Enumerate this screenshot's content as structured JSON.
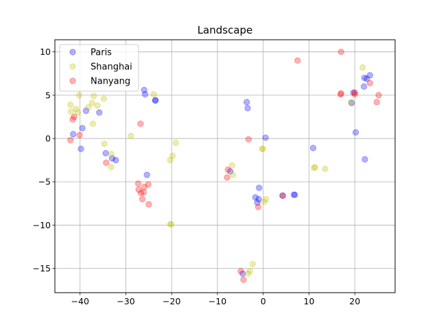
{
  "chart_data": {
    "type": "scatter",
    "title": "Landscape",
    "xlabel": "",
    "ylabel": "",
    "xlim": [
      -45.5,
      28.8
    ],
    "ylim": [
      -17.8,
      11.4
    ],
    "xticks": [
      -40,
      -30,
      -20,
      -10,
      0,
      10,
      20
    ],
    "yticks": [
      -15,
      -10,
      -5,
      0,
      5,
      10
    ],
    "xtick_labels": [
      "−40",
      "−30",
      "−20",
      "−10",
      "0",
      "10",
      "20"
    ],
    "ytick_labels": [
      "−15",
      "−10",
      "−5",
      "0",
      "5",
      "10"
    ],
    "grid": true,
    "legend_position": "top-left",
    "series": [
      {
        "name": "Paris",
        "color": "#0000ff",
        "points": [
          [
            -41.5,
            0.5
          ],
          [
            -39.8,
            -1.2
          ],
          [
            -39.5,
            1.2
          ],
          [
            -38.7,
            3.2
          ],
          [
            -35.8,
            3.0
          ],
          [
            -34.4,
            -1.7
          ],
          [
            -33.0,
            -2.3
          ],
          [
            -32.2,
            -2.5
          ],
          [
            -26.0,
            5.6
          ],
          [
            -25.8,
            5.1
          ],
          [
            -25.4,
            -4.2
          ],
          [
            -23.6,
            4.4
          ],
          [
            -23.5,
            4.4
          ],
          [
            -7.2,
            -3.8
          ],
          [
            -3.6,
            4.2
          ],
          [
            -3.4,
            3.5
          ],
          [
            -1.7,
            -6.8
          ],
          [
            -1.3,
            -7.4
          ],
          [
            -1.0,
            -7.0
          ],
          [
            -0.9,
            -5.7
          ],
          [
            0.5,
            0.1
          ],
          [
            -4.5,
            -15.6
          ],
          [
            4.2,
            -6.6
          ],
          [
            6.7,
            -6.5
          ],
          [
            6.9,
            -6.5
          ],
          [
            10.9,
            -1.1
          ],
          [
            19.7,
            5.3
          ],
          [
            20.2,
            0.7
          ],
          [
            22.1,
            7.0
          ],
          [
            22.0,
            6.0
          ],
          [
            22.6,
            6.9
          ],
          [
            22.2,
            -2.4
          ],
          [
            23.3,
            7.3
          ],
          [
            19.3,
            4.1
          ]
        ]
      },
      {
        "name": "Shanghai",
        "color": "#bfbf00",
        "points": [
          [
            -42.1,
            3.9
          ],
          [
            -42.0,
            3.1
          ],
          [
            -40.9,
            3.4
          ],
          [
            -40.5,
            3.0
          ],
          [
            -40.2,
            5.0
          ],
          [
            -38.2,
            3.6
          ],
          [
            -37.4,
            4.1
          ],
          [
            -37.0,
            4.9
          ],
          [
            -37.2,
            1.7
          ],
          [
            -36.2,
            3.8
          ],
          [
            -34.8,
            4.6
          ],
          [
            -34.7,
            -0.6
          ],
          [
            -33.2,
            -1.8
          ],
          [
            -33.2,
            -3.3
          ],
          [
            -28.9,
            0.3
          ],
          [
            -23.9,
            5.1
          ],
          [
            -20.3,
            -2.5
          ],
          [
            -19.8,
            -2.0
          ],
          [
            -19.1,
            -0.5
          ],
          [
            -20.3,
            -9.9
          ],
          [
            -20.1,
            -9.9
          ],
          [
            -6.8,
            -3.1
          ],
          [
            -6.6,
            -4.2
          ],
          [
            -0.2,
            -1.2
          ],
          [
            -0.1,
            -1.2
          ],
          [
            0.2,
            -7.3
          ],
          [
            0.6,
            -7.0
          ],
          [
            -3.3,
            -15.6
          ],
          [
            -2.9,
            -15.3
          ],
          [
            -2.3,
            -14.5
          ],
          [
            11.1,
            -3.4
          ],
          [
            11.3,
            -3.3
          ],
          [
            13.5,
            -3.5
          ],
          [
            21.7,
            8.2
          ],
          [
            19.2,
            4.2
          ]
        ]
      },
      {
        "name": "Nanyang",
        "color": "#ff0000",
        "points": [
          [
            -42.1,
            -0.2
          ],
          [
            -41.6,
            2.2
          ],
          [
            -41.3,
            2.5
          ],
          [
            -40.1,
            0.4
          ],
          [
            -34.3,
            -2.8
          ],
          [
            -27.3,
            -5.2
          ],
          [
            -27.2,
            -5.9
          ],
          [
            -26.8,
            1.7
          ],
          [
            -26.7,
            -6.3
          ],
          [
            -26.4,
            -7.0
          ],
          [
            -26.1,
            -6.2
          ],
          [
            -26.0,
            -5.6
          ],
          [
            -25.1,
            -5.3
          ],
          [
            -25.0,
            -7.6
          ],
          [
            -7.9,
            -4.5
          ],
          [
            -7.7,
            -3.6
          ],
          [
            -3.2,
            -0.1
          ],
          [
            -1.1,
            -7.9
          ],
          [
            -4.9,
            -15.3
          ],
          [
            -4.3,
            -16.3
          ],
          [
            4.3,
            -6.6
          ],
          [
            7.5,
            9.0
          ],
          [
            16.9,
            5.1
          ],
          [
            17.0,
            5.2
          ],
          [
            17.0,
            10.0
          ],
          [
            20.0,
            5.1
          ],
          [
            20.0,
            5.3
          ],
          [
            23.3,
            6.4
          ],
          [
            24.8,
            4.2
          ],
          [
            25.2,
            5.0
          ]
        ]
      }
    ]
  }
}
